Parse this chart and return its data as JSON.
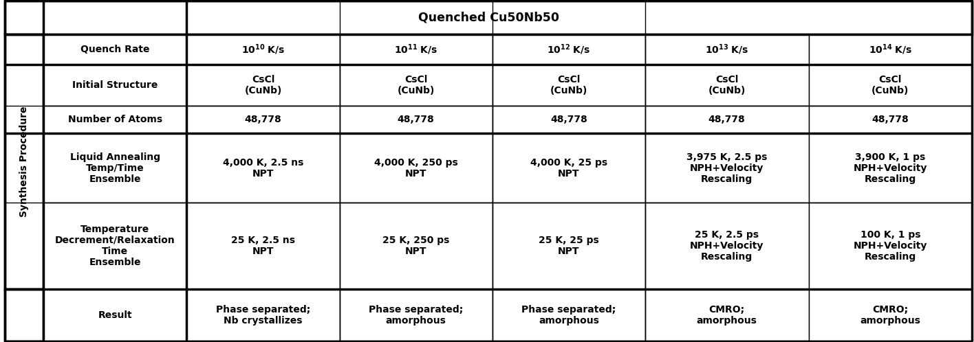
{
  "title": "Quenched Cu50Nb50",
  "synthesis_label": "Synthesis Procedure",
  "quench_rate_label": "Quench Rate",
  "quench_exponents": [
    "10",
    "11",
    "12",
    "13",
    "14"
  ],
  "rows": [
    {
      "label": "Initial Structure",
      "values": [
        "CsCl\n(CuNb)",
        "CsCl\n(CuNb)",
        "CsCl\n(CuNb)",
        "CsCl\n(CuNb)",
        "CsCl\n(CuNb)"
      ]
    },
    {
      "label": "Number of Atoms",
      "values": [
        "48,778",
        "48,778",
        "48,778",
        "48,778",
        "48,778"
      ]
    },
    {
      "label": "Liquid Annealing\nTemp/Time\nEnsemble",
      "values": [
        "4,000 K, 2.5 ns\nNPT",
        "4,000 K, 250 ps\nNPT",
        "4,000 K, 25 ps\nNPT",
        "3,975 K, 2.5 ps\nNPH+Velocity\nRescaling",
        "3,900 K, 1 ps\nNPH+Velocity\nRescaling"
      ]
    },
    {
      "label": "Temperature\nDecrement/Relaxation\nTime\nEnsemble",
      "values": [
        "25 K, 2.5 ns\nNPT",
        "25 K, 250 ps\nNPT",
        "25 K, 25 ps\nNPT",
        "25 K, 2.5 ps\nNPH+Velocity\nRescaling",
        "100 K, 1 ps\nNPH+Velocity\nRescaling"
      ]
    },
    {
      "label": "Result",
      "values": [
        "Phase separated;\nNb crystallizes",
        "Phase separated;\namorphous",
        "Phase separated;\namorphous",
        "CMRO;\namorphous",
        "CMRO;\namorphous"
      ]
    }
  ],
  "background_color": "#ffffff",
  "text_color": "#000000",
  "font_size": 10.0,
  "title_font_size": 12.5,
  "thick_lw": 2.5,
  "thin_lw": 1.0
}
